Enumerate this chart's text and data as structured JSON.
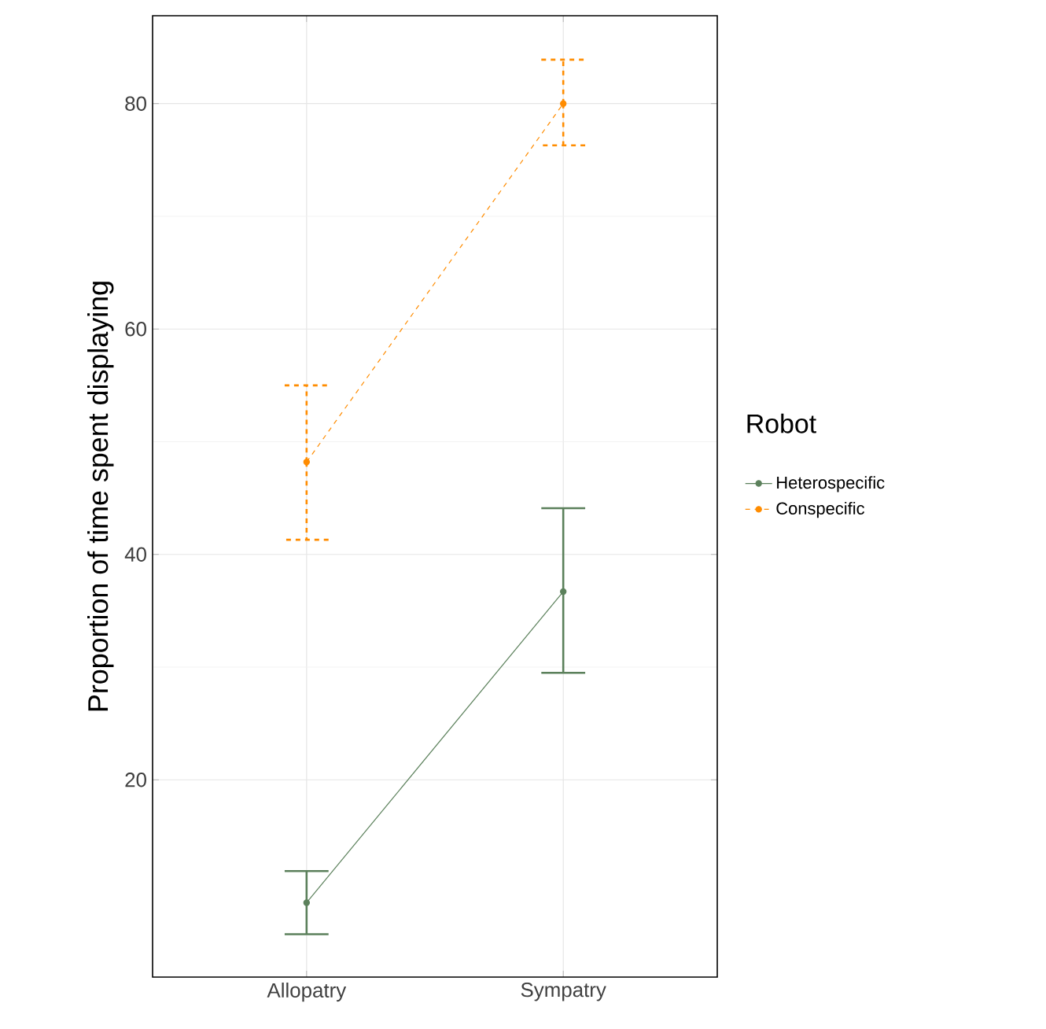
{
  "chart_data": {
    "type": "line",
    "ylabel": "Proportion of time spent displaying",
    "legend_title": "Robot",
    "categories": [
      "Allopatry",
      "Sympatry"
    ],
    "series": [
      {
        "name": "Heterospecific",
        "color": "#5b805b",
        "line_style": "solid",
        "values": [
          9.1,
          36.7
        ],
        "errors": [
          [
            6.3,
            11.9
          ],
          [
            29.5,
            44.1
          ]
        ]
      },
      {
        "name": "Conspecific",
        "color": "#ff8c00",
        "line_style": "dashed",
        "values": [
          48.2,
          80.0
        ],
        "errors": [
          [
            41.3,
            55.0
          ],
          [
            76.3,
            83.9
          ]
        ]
      }
    ],
    "ylim": [
      2.5,
      87.8
    ],
    "yticks": [
      20,
      40,
      60,
      80
    ],
    "grid": true,
    "legend": "right",
    "marker": "circle"
  }
}
